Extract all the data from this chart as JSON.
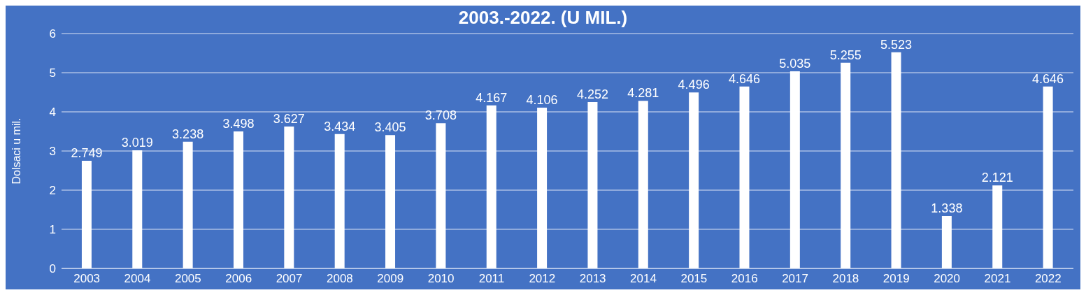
{
  "chart_data": {
    "type": "bar",
    "title": "2003.-2022. (U MIL.)",
    "ylabel": "Dolsaci u mil.",
    "categories": [
      "2003",
      "2004",
      "2005",
      "2006",
      "2007",
      "2008",
      "2009",
      "2010",
      "2011",
      "2012",
      "2013",
      "2014",
      "2015",
      "2016",
      "2017",
      "2018",
      "2019",
      "2020",
      "2021",
      "2022"
    ],
    "values": [
      2.749,
      3.019,
      3.238,
      3.498,
      3.627,
      3.434,
      3.405,
      3.708,
      4.167,
      4.106,
      4.252,
      4.281,
      4.496,
      4.646,
      5.035,
      5.255,
      5.523,
      1.338,
      2.121,
      4.646
    ],
    "color": "#ffffff",
    "ylim": [
      0,
      6
    ],
    "yticks": [
      0,
      1,
      2,
      3,
      4,
      5,
      6
    ],
    "grid": "y",
    "data_labels": true
  }
}
